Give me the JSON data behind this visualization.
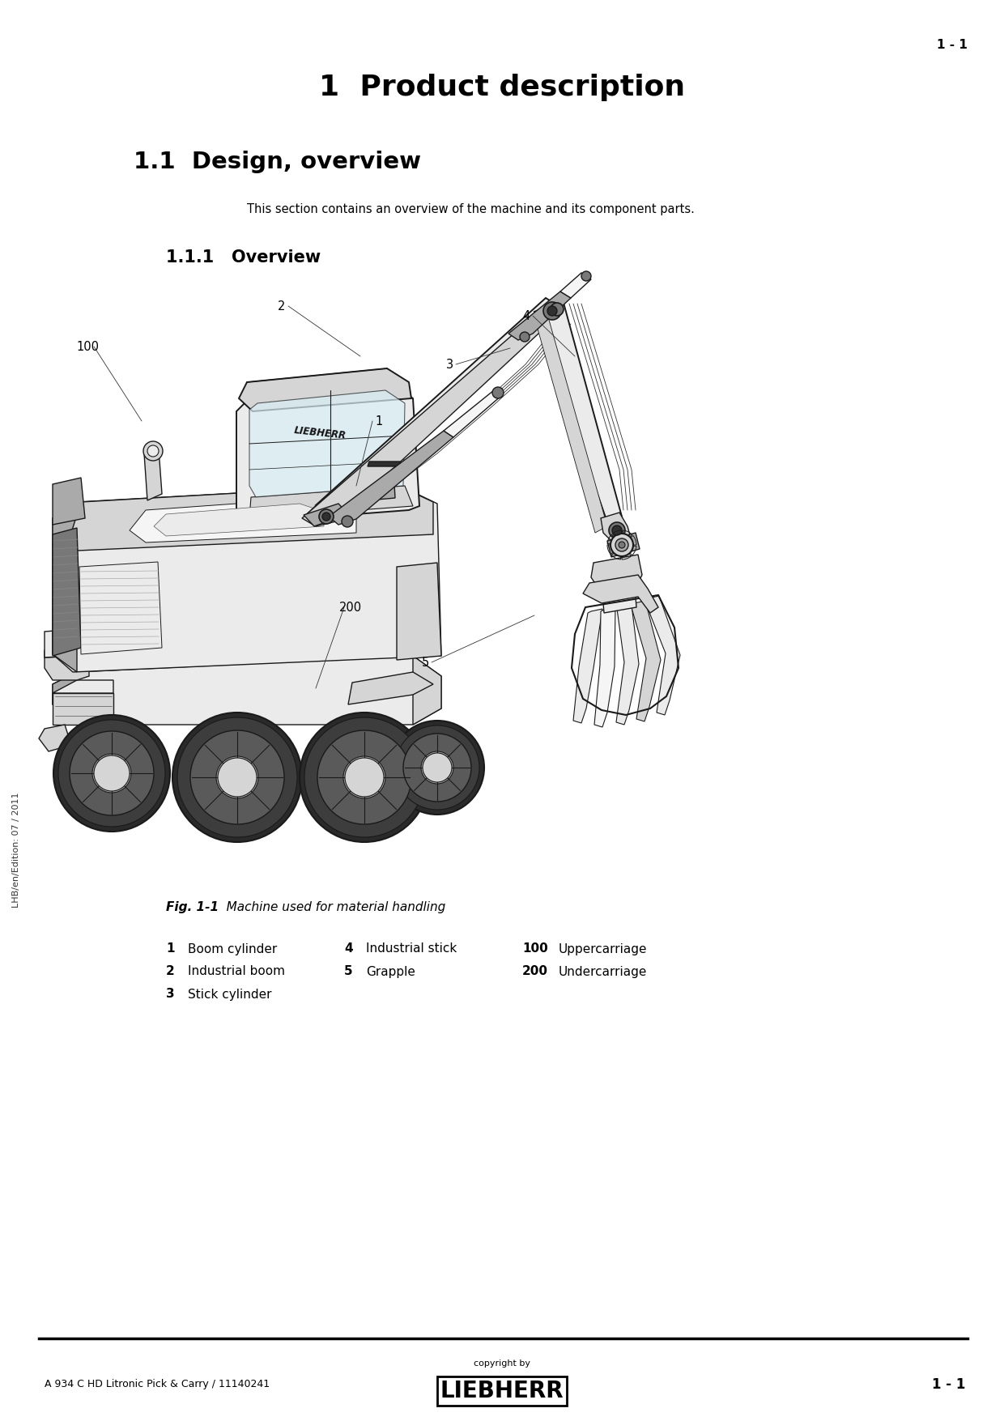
{
  "page_title": "1  Product description",
  "section_title": "1.1  Design, overview",
  "section_intro": "This section contains an overview of the machine and its component parts.",
  "subsection_title": "1.1.1   Overview",
  "fig_label": "Fig. 1-1",
  "fig_caption": "Machine used for material handling",
  "legend_items": [
    {
      "num": "1",
      "bold": false,
      "desc": "Boom cylinder"
    },
    {
      "num": "2",
      "bold": false,
      "desc": "Industrial boom"
    },
    {
      "num": "3",
      "bold": false,
      "desc": "Stick cylinder"
    },
    {
      "num": "4",
      "bold": false,
      "desc": "Industrial stick"
    },
    {
      "num": "5",
      "bold": false,
      "desc": "Grapple"
    },
    {
      "num": "100",
      "bold": true,
      "desc": "Uppercarriage"
    },
    {
      "num": "200",
      "bold": true,
      "desc": "Undercarriage"
    }
  ],
  "footer_left": "A 934 C HD Litronic Pick & Carry / 11140241",
  "footer_center_small": "copyright by",
  "footer_center_logo": "LIEBHERR",
  "footer_right": "1 - 1",
  "side_text": "LHB/en/Edition: 07 / 2011",
  "bg_color": "#ffffff",
  "text_color": "#000000",
  "title_fontsize": 26,
  "section_fontsize": 21,
  "subsection_fontsize": 15,
  "body_fontsize": 10.5,
  "footer_fontsize": 9
}
